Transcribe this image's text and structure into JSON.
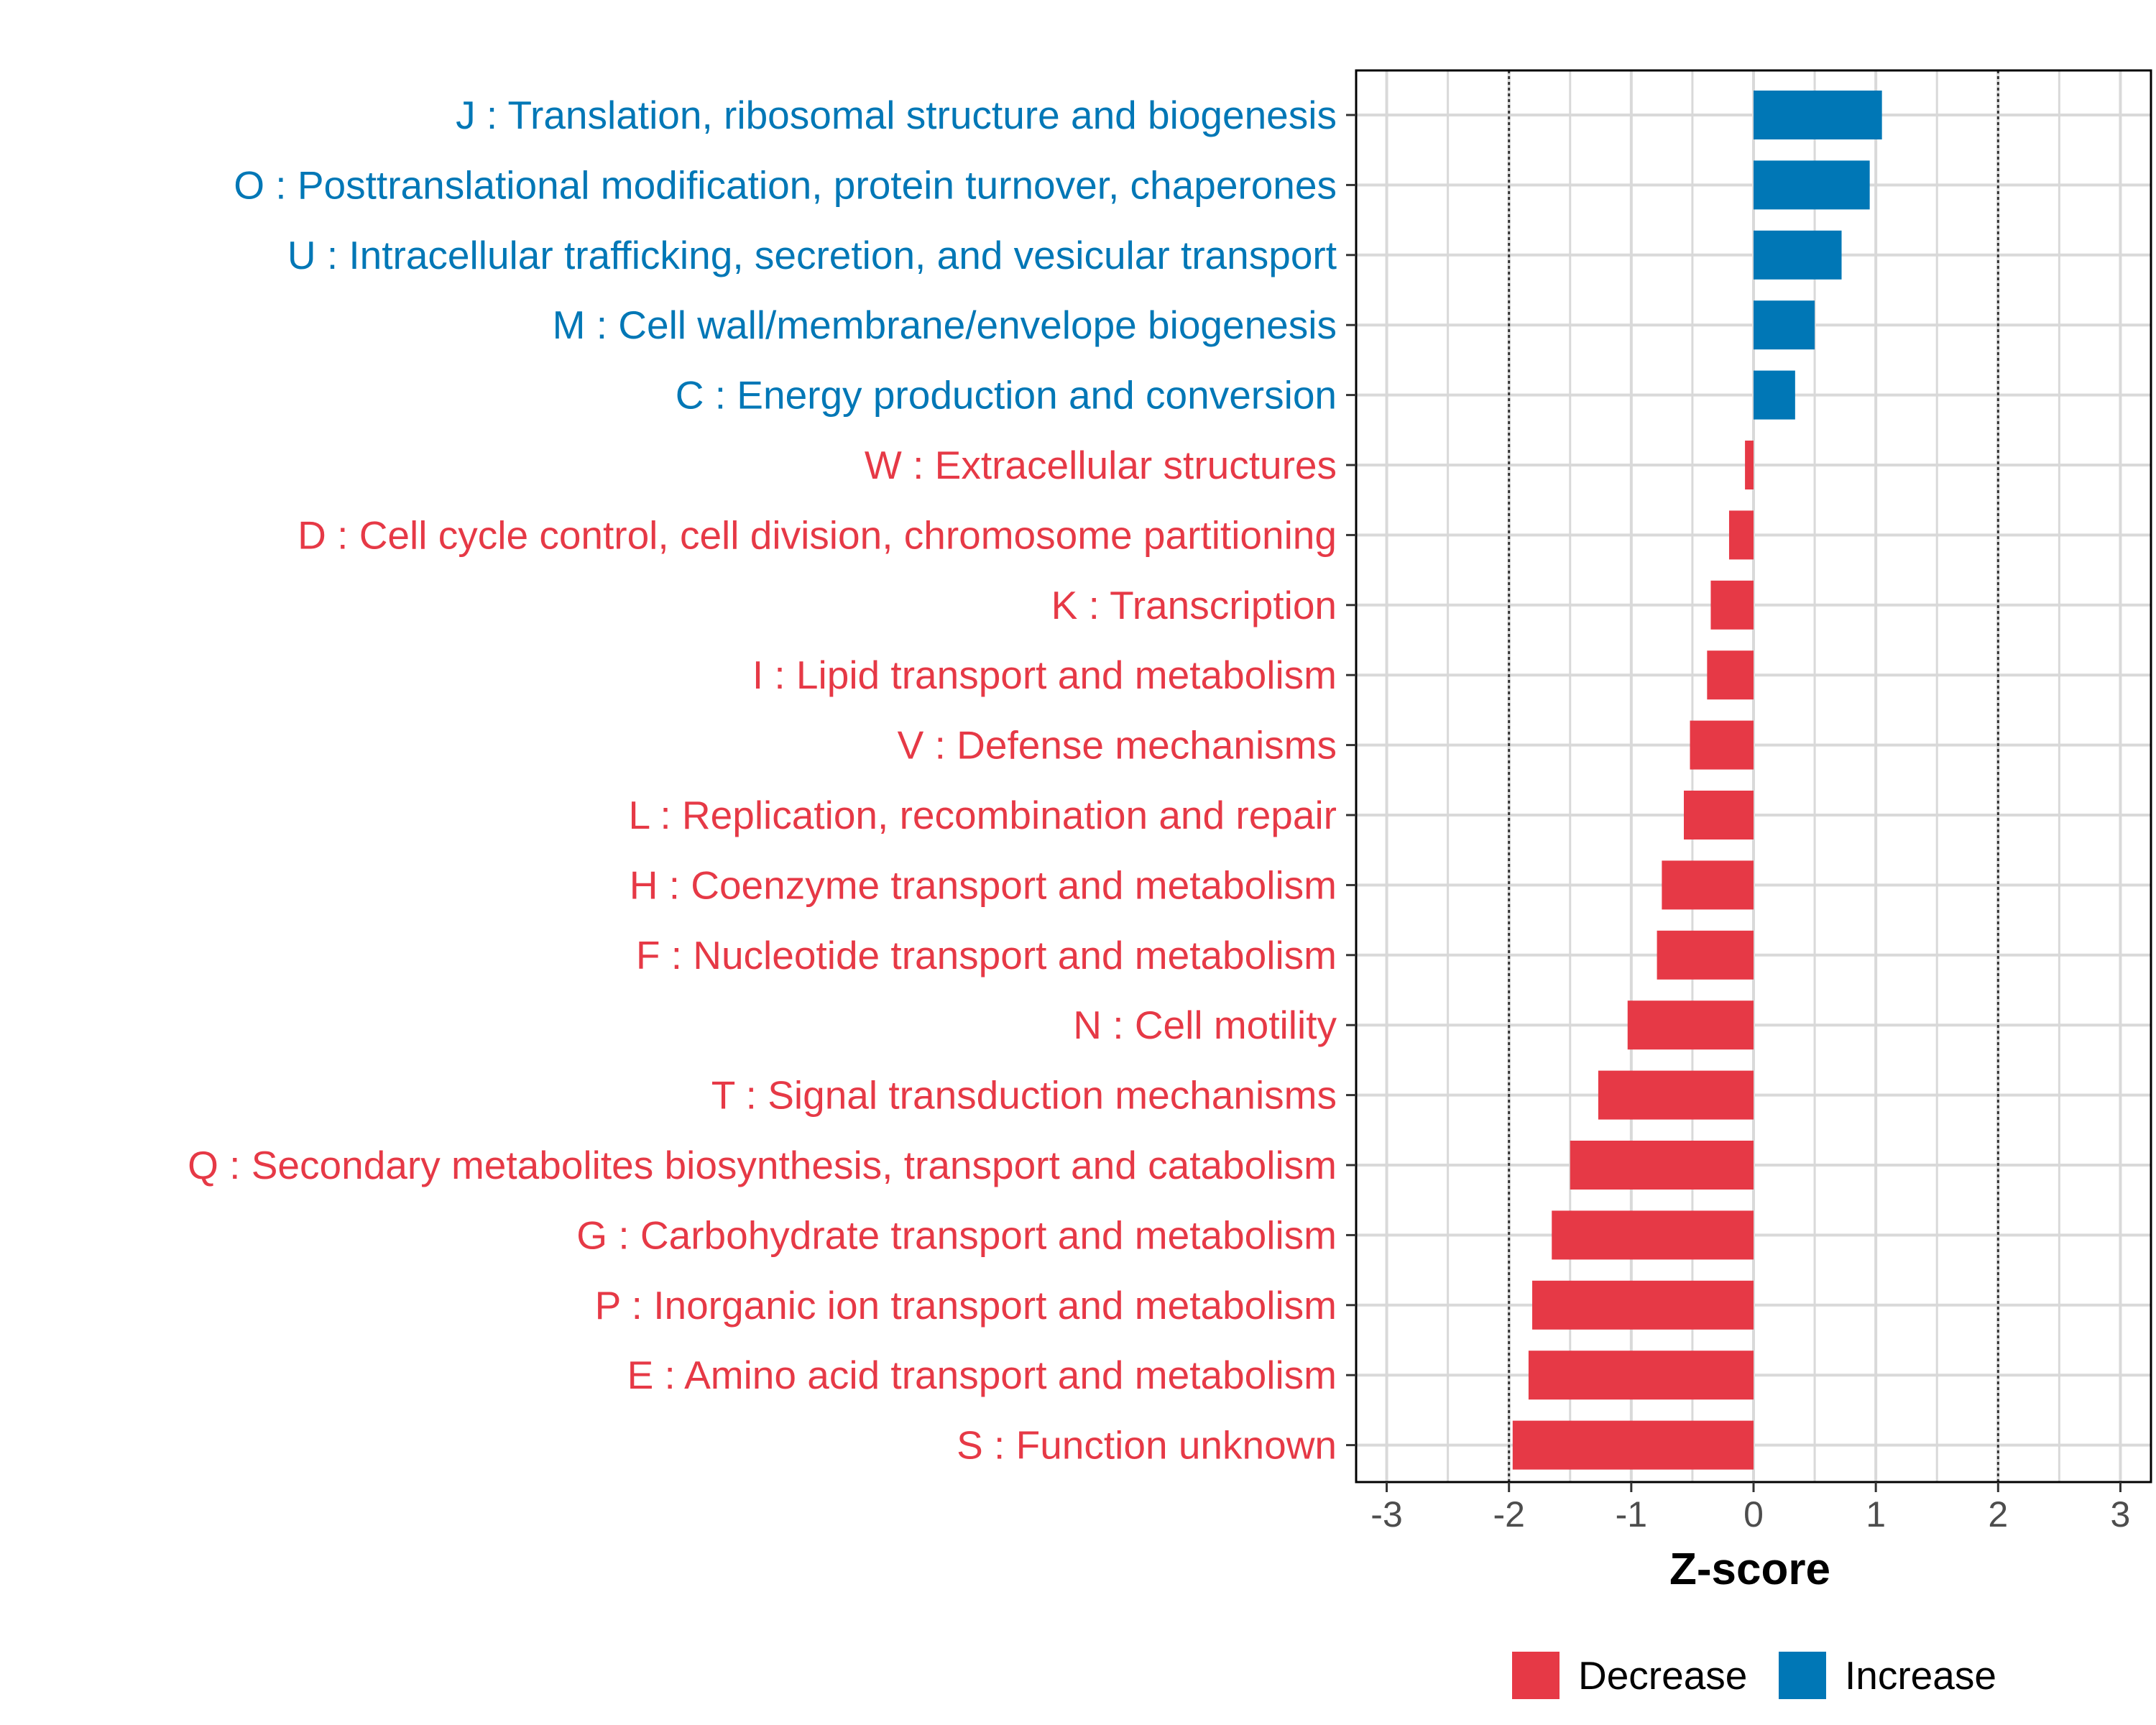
{
  "chart_data": {
    "type": "bar",
    "orientation": "horizontal",
    "title": "",
    "xlabel": "Z-score",
    "ylabel": "",
    "xlim": [
      -3.25,
      3.25
    ],
    "xticks": [
      -3,
      -2,
      -1,
      0,
      1,
      2,
      3
    ],
    "reference_lines": [
      -2,
      2
    ],
    "grid": true,
    "legend_position": "bottom",
    "legend": [
      {
        "label": "Decrease",
        "color": "#E63946"
      },
      {
        "label": "Increase",
        "color": "#0077B6"
      }
    ],
    "categories": [
      "J : Translation, ribosomal structure and biogenesis",
      "O : Posttranslational modification, protein turnover, chaperones",
      "U : Intracellular trafficking, secretion, and vesicular transport",
      "M : Cell wall/membrane/envelope biogenesis",
      "C : Energy production and conversion",
      "W : Extracellular structures",
      "D : Cell cycle control, cell division, chromosome partitioning",
      "K : Transcription",
      "I : Lipid transport and metabolism",
      "V : Defense mechanisms",
      "L : Replication, recombination and repair",
      "H : Coenzyme transport and metabolism",
      "F : Nucleotide transport and metabolism",
      "N : Cell motility",
      "T : Signal transduction mechanisms",
      "Q : Secondary metabolites biosynthesis, transport and catabolism",
      "G : Carbohydrate transport and metabolism",
      "P : Inorganic ion transport and metabolism",
      "E : Amino acid transport and metabolism",
      "S : Function unknown"
    ],
    "values": [
      1.05,
      0.95,
      0.72,
      0.5,
      0.34,
      -0.07,
      -0.2,
      -0.35,
      -0.38,
      -0.52,
      -0.57,
      -0.75,
      -0.79,
      -1.03,
      -1.27,
      -1.5,
      -1.65,
      -1.81,
      -1.84,
      -1.97
    ],
    "groups": [
      "Increase",
      "Increase",
      "Increase",
      "Increase",
      "Increase",
      "Decrease",
      "Decrease",
      "Decrease",
      "Decrease",
      "Decrease",
      "Decrease",
      "Decrease",
      "Decrease",
      "Decrease",
      "Decrease",
      "Decrease",
      "Decrease",
      "Decrease",
      "Decrease",
      "Decrease"
    ]
  },
  "colors": {
    "increase": "#0077B6",
    "decrease": "#E63946",
    "grid": "#D9D9D9",
    "axis_text": "#4D4D4D",
    "frame": "#000000"
  }
}
